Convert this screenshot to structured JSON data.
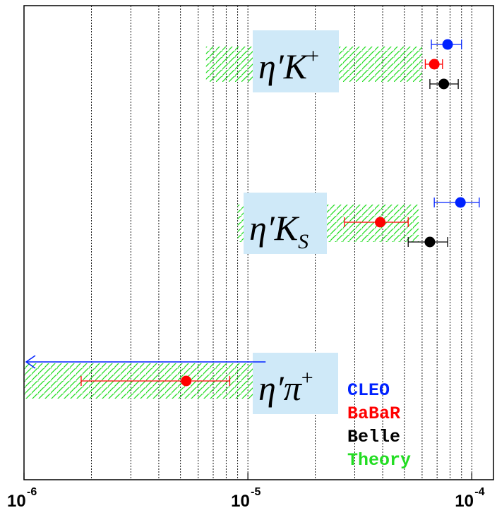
{
  "chart_data": {
    "type": "scatter",
    "xscale": "log",
    "xlim": [
      1e-06,
      0.000125
    ],
    "xticks": [
      {
        "base": "10",
        "exp": "-6",
        "value": 1e-06
      },
      {
        "base": "10",
        "exp": "-5",
        "value": 1e-05
      },
      {
        "base": "10",
        "exp": "-4",
        "value": 0.0001
      }
    ],
    "grid": "vertical-minor-dotted",
    "channels": [
      {
        "label_main": "η′K",
        "label_sup": "+",
        "label_sub": "",
        "theory_band": [
          6.5e-06,
          6e-05
        ],
        "measurements": [
          {
            "experiment": "CLEO",
            "value": 7.8e-05,
            "err_low": 6.6e-05,
            "err_high": 9e-05
          },
          {
            "experiment": "BaBaR",
            "value": 6.8e-05,
            "err_low": 6.2e-05,
            "err_high": 7.4e-05
          },
          {
            "experiment": "Belle",
            "value": 7.5e-05,
            "err_low": 6.5e-05,
            "err_high": 8.7e-05
          }
        ]
      },
      {
        "label_main": "η′K",
        "label_sup": "",
        "label_sub": "S",
        "theory_band": [
          9e-06,
          5.8e-05
        ],
        "measurements": [
          {
            "experiment": "CLEO",
            "value": 8.9e-05,
            "err_low": 6.8e-05,
            "err_high": 0.000108
          },
          {
            "experiment": "BaBaR",
            "value": 3.9e-05,
            "err_low": 2.7e-05,
            "err_high": 5.2e-05
          },
          {
            "experiment": "Belle",
            "value": 6.5e-05,
            "err_low": 5.2e-05,
            "err_high": 7.8e-05
          }
        ]
      },
      {
        "label_main": "η′π",
        "label_sup": "+",
        "label_sub": "",
        "theory_band": [
          1e-06,
          1.15e-05
        ],
        "cleo_upper_limit": 1.2e-05,
        "measurements": [
          {
            "experiment": "BaBaR",
            "value": 5.3e-06,
            "err_low": 1.8e-06,
            "err_high": 8.3e-06
          }
        ]
      }
    ],
    "legend": {
      "placement": "bottom-right",
      "entries": [
        {
          "label": "CLEO",
          "color": "#0022ff"
        },
        {
          "label": "BaBaR",
          "color": "#ff0000"
        },
        {
          "label": "Belle",
          "color": "#000000"
        },
        {
          "label": "Theory",
          "color": "#22dd22"
        }
      ]
    },
    "colors": {
      "cleo": "#0022ff",
      "babar": "#ff0000",
      "belle": "#000000",
      "theory": "#22dd22",
      "label_box": "#cfe9f8"
    }
  }
}
